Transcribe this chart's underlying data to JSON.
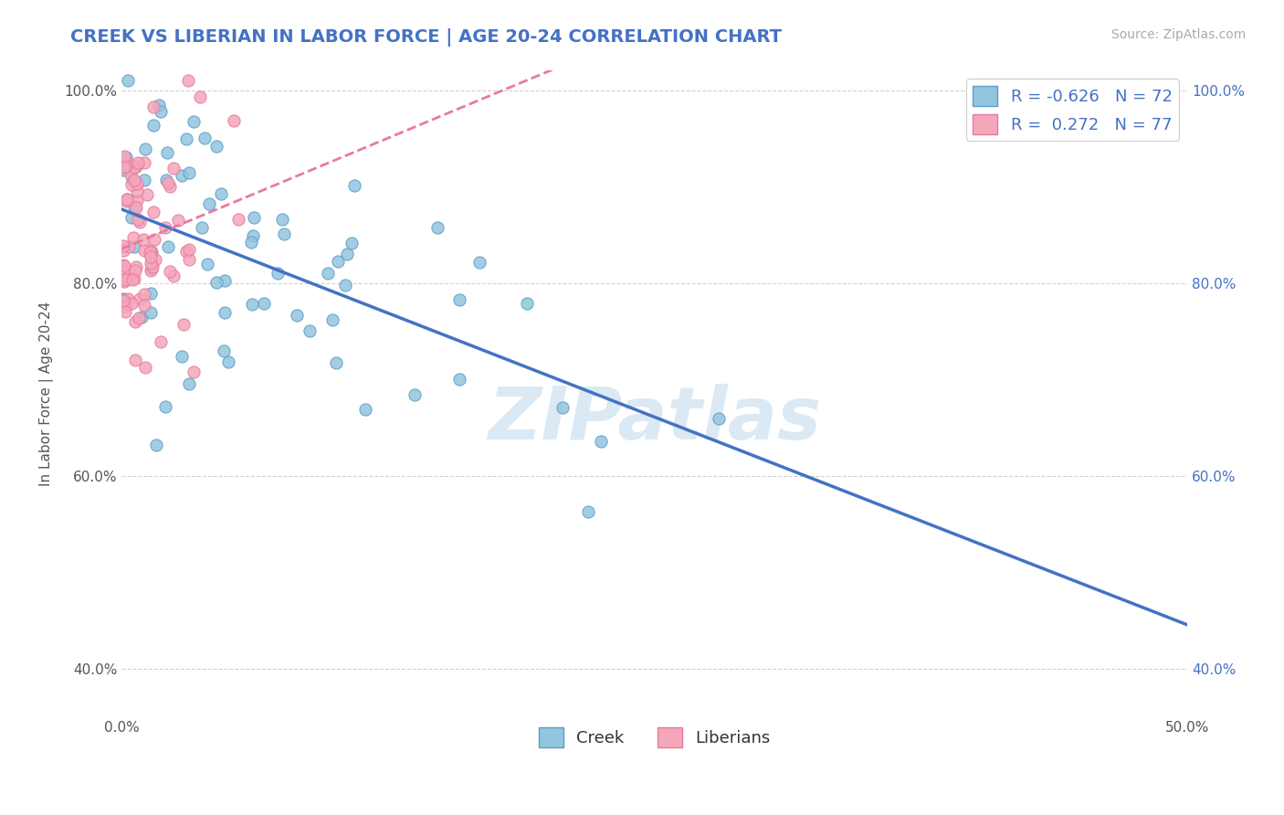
{
  "title": "CREEK VS LIBERIAN IN LABOR FORCE | AGE 20-24 CORRELATION CHART",
  "source": "Source: ZipAtlas.com",
  "ylabel": "In Labor Force | Age 20-24",
  "xlim": [
    0.0,
    0.5
  ],
  "ylim": [
    0.35,
    1.02
  ],
  "xticks": [
    0.0,
    0.1,
    0.2,
    0.3,
    0.4,
    0.5
  ],
  "yticks": [
    0.4,
    0.6,
    0.8,
    1.0
  ],
  "creek_color": "#92C5DE",
  "creek_edge_color": "#5B9EC9",
  "liberian_color": "#F4A7B9",
  "liberian_edge_color": "#E87AA0",
  "creek_trend_color": "#4472C4",
  "liberian_trend_color": "#E87AA0",
  "creek_R": -0.626,
  "creek_N": 72,
  "liberian_R": 0.272,
  "liberian_N": 77,
  "title_color": "#4472C4",
  "source_color": "#aaaaaa",
  "watermark": "ZIPatlas",
  "background_color": "#ffffff",
  "grid_color": "#cccccc",
  "legend_text_color": "#4472C4"
}
